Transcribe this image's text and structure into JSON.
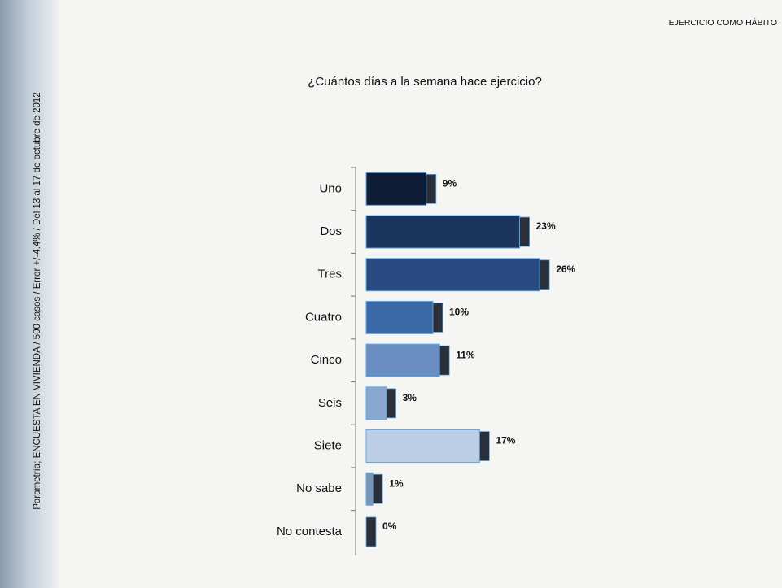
{
  "header": "EJERCICIO COMO HÁBITO",
  "side_note": "Parametría; ENCUESTA EN VIVIENDA / 500 casos / Error +/-4.4% / Del 13 al 17 de octubre de 2012",
  "chart_data": {
    "type": "hbar",
    "title": "¿Cuántos días a la semana hace ejercicio?",
    "categories": [
      "Uno",
      "Dos",
      "Tres",
      "Cuatro",
      "Cinco",
      "Seis",
      "Siete",
      "No sabe",
      "No contesta"
    ],
    "values": [
      9,
      23,
      26,
      10,
      11,
      3,
      17,
      1,
      0
    ],
    "value_labels": [
      "9%",
      "23%",
      "26%",
      "10%",
      "11%",
      "3%",
      "17%",
      "1%",
      "0%"
    ],
    "colors": [
      "#0e1c36",
      "#1c355f",
      "#2a4a82",
      "#3b69a8",
      "#6a8ec2",
      "#8aa7cf",
      "#bccfe6",
      "#7a94b4",
      "#3c3c48"
    ],
    "xlim": [
      0,
      30
    ]
  }
}
